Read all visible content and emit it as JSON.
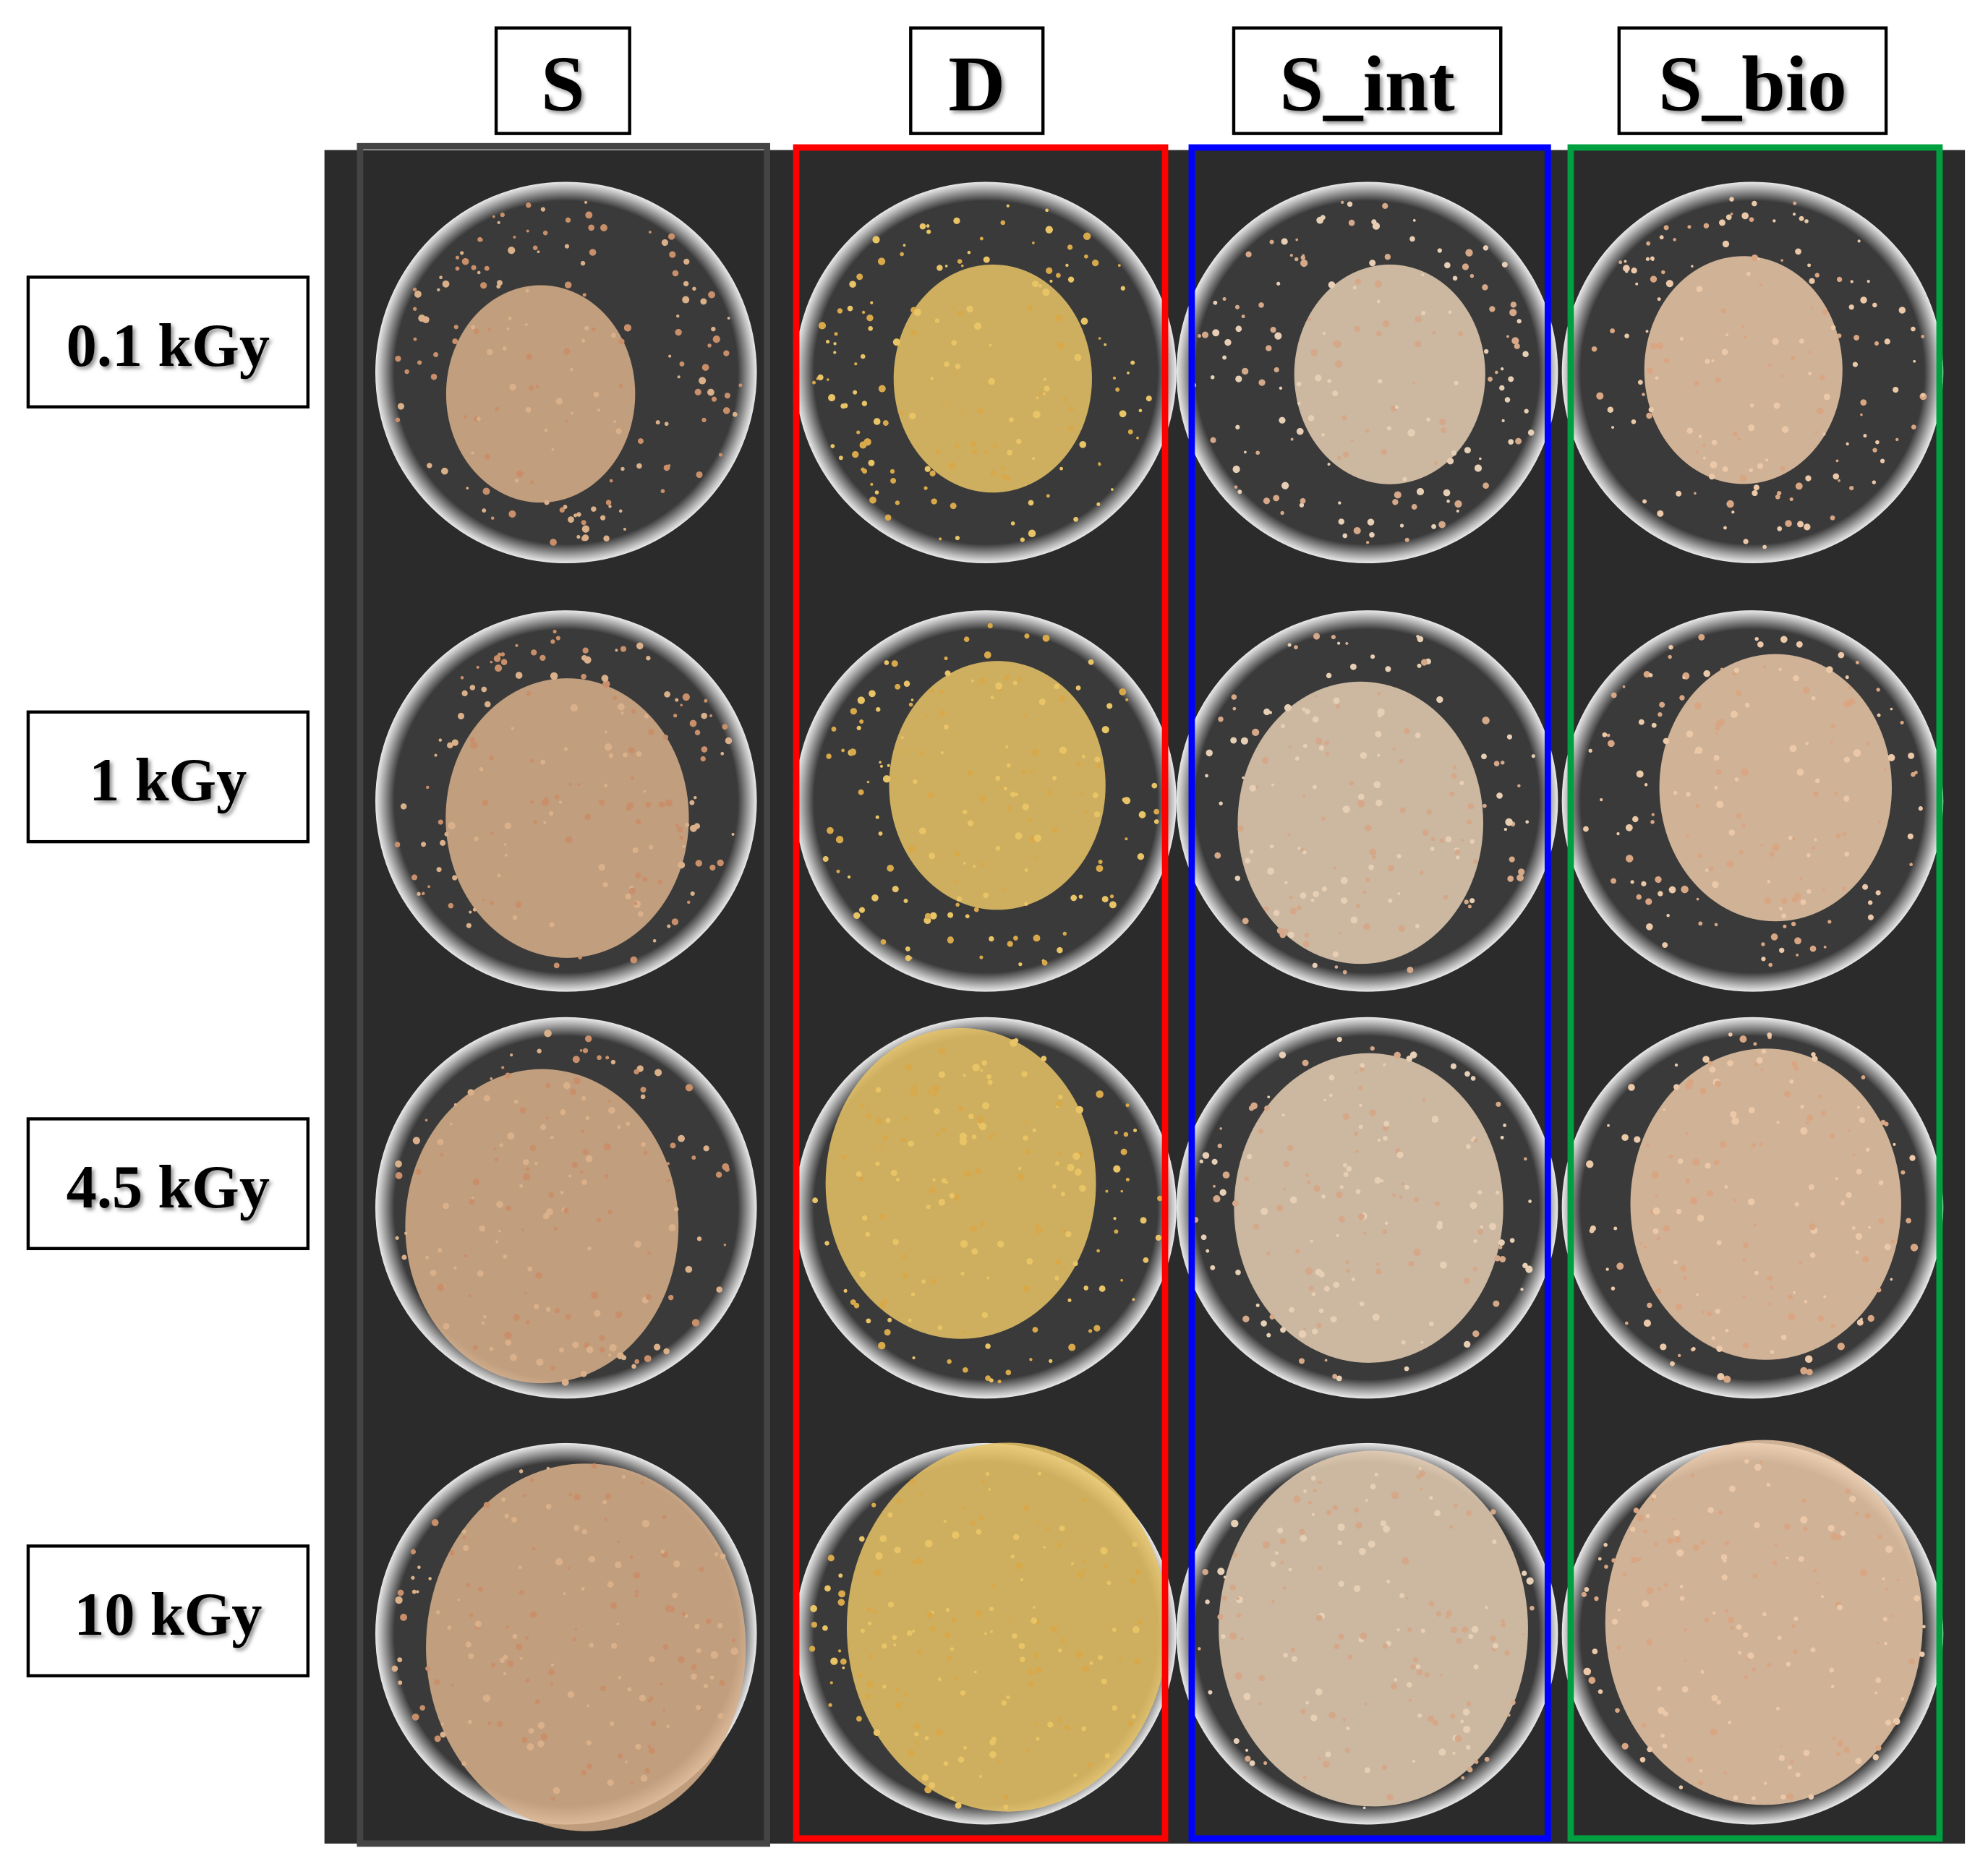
{
  "column_headers": [
    "S",
    "D",
    "S_int",
    "S_bio"
  ],
  "row_labels": [
    "0.1 kGy",
    "1 kGy",
    "4.5 kGy",
    "10 kGy"
  ]
}
